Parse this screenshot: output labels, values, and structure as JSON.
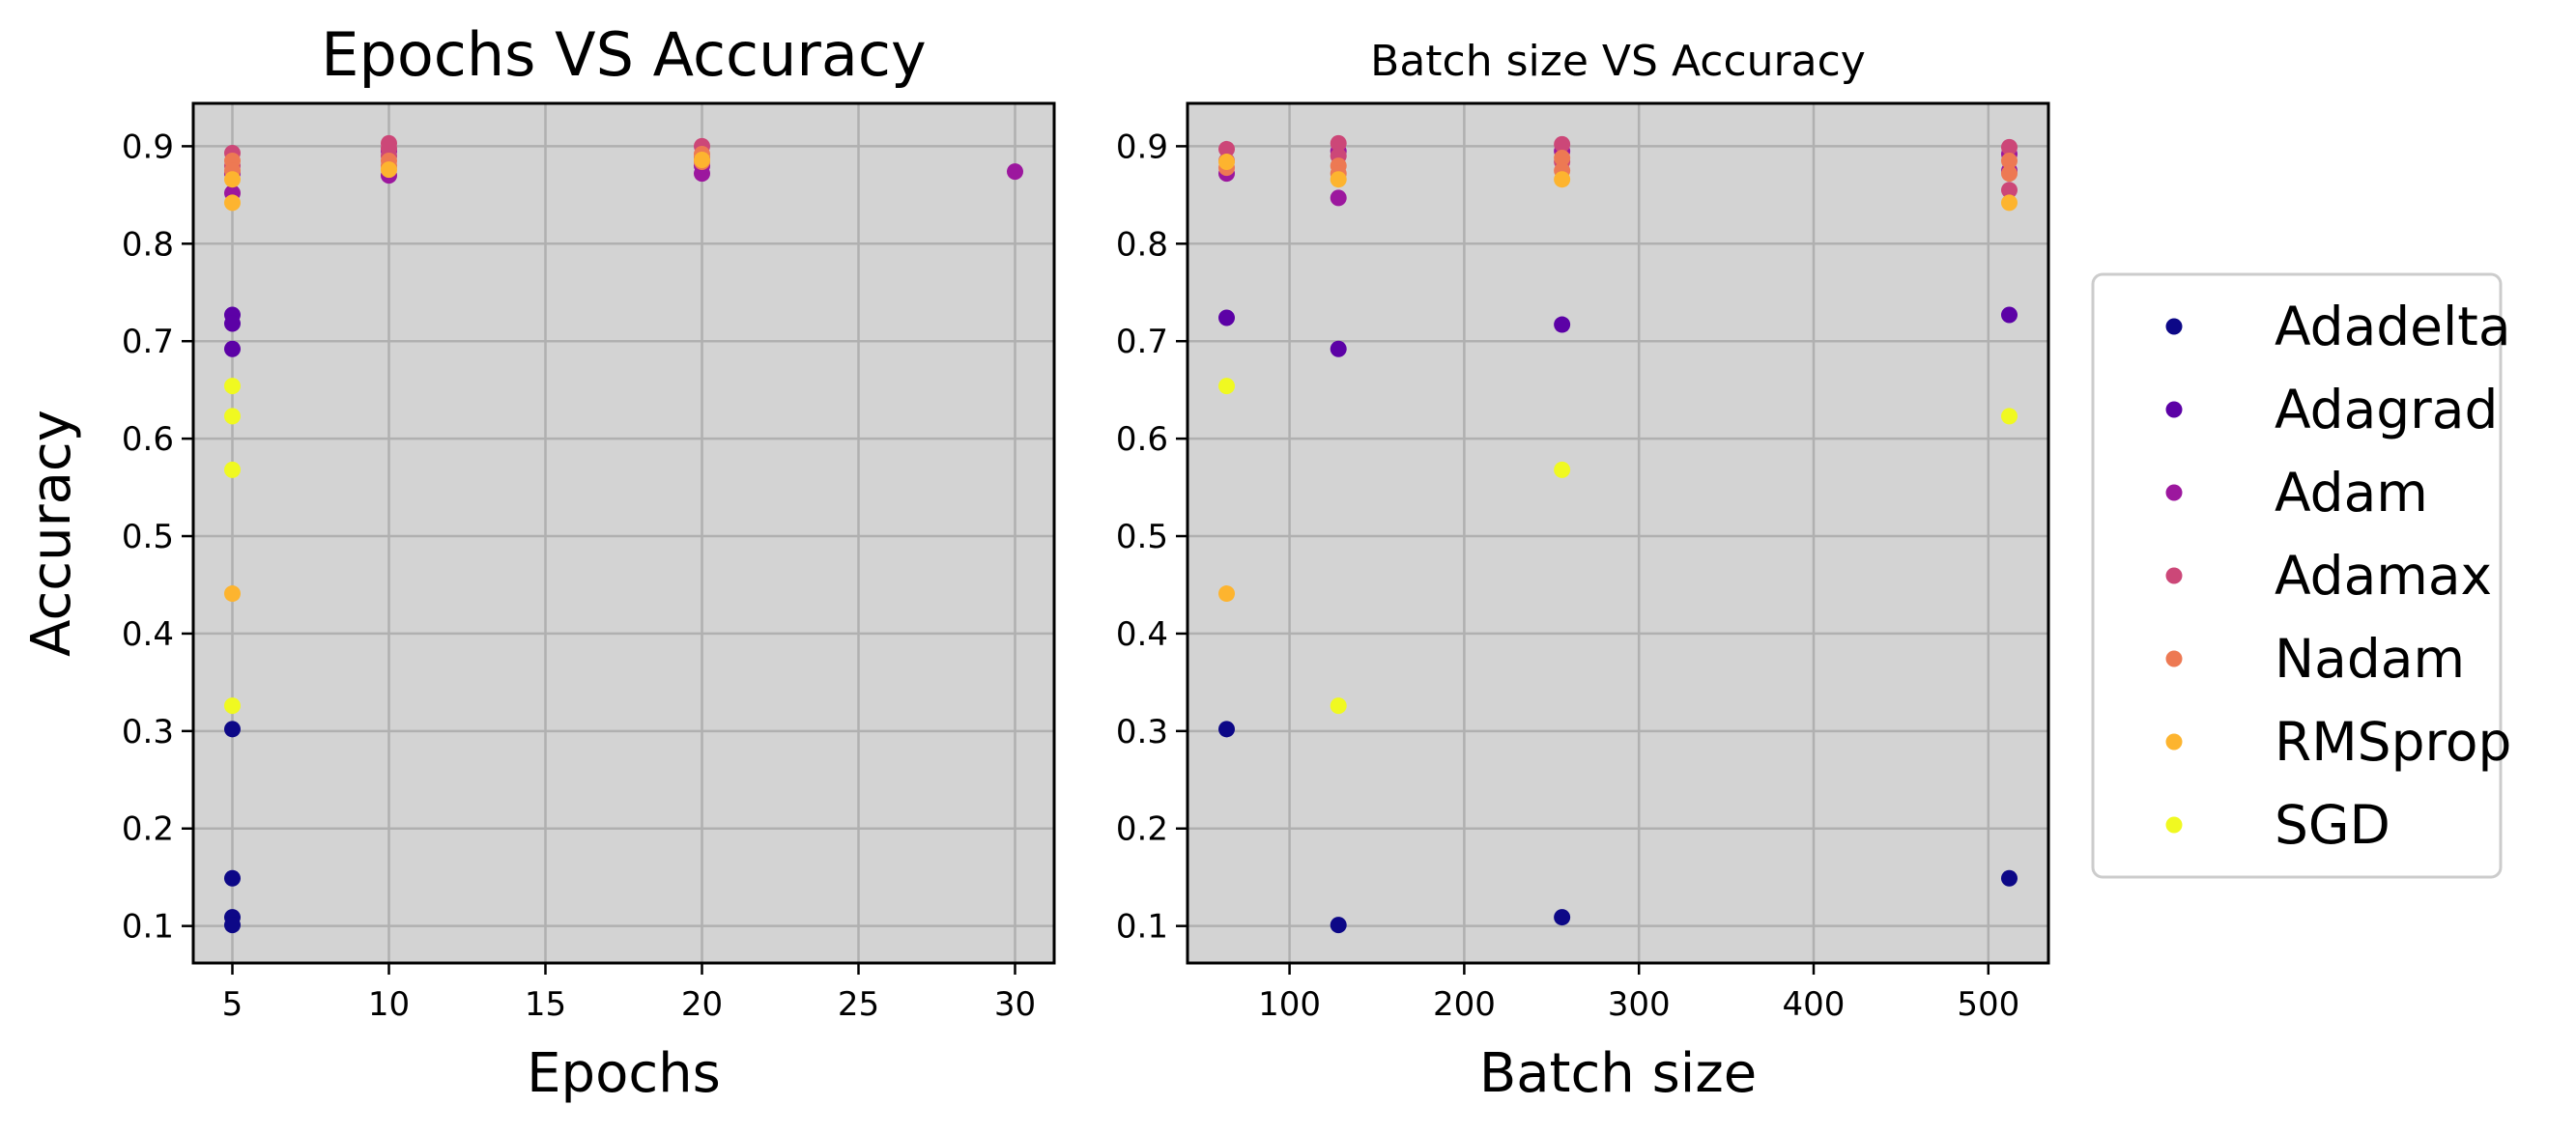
{
  "legend": {
    "items": [
      {
        "label": "Adadelta",
        "color": "#0d0887"
      },
      {
        "label": "Adagrad",
        "color": "#5c01a6"
      },
      {
        "label": "Adam",
        "color": "#9c179e"
      },
      {
        "label": "Adamax",
        "color": "#cc4778"
      },
      {
        "label": "Nadam",
        "color": "#ed7953"
      },
      {
        "label": "RMSprop",
        "color": "#fdb42f"
      },
      {
        "label": "SGD",
        "color": "#f0f921"
      }
    ]
  },
  "chart_data": [
    {
      "type": "scatter",
      "title": "Epochs VS Accuracy",
      "xlabel": "Epochs",
      "ylabel": "Accuracy",
      "xlim": [
        3.75,
        31.25
      ],
      "ylim": [
        0.062,
        0.944
      ],
      "xticks": [
        5,
        10,
        15,
        20,
        25,
        30
      ],
      "yticks": [
        0.1,
        0.2,
        0.3,
        0.4,
        0.5,
        0.6,
        0.7,
        0.8,
        0.9
      ],
      "grid": true,
      "background": "#d3d3d3",
      "series": [
        {
          "name": "Adadelta",
          "color": "#0d0887",
          "points": [
            [
              5,
              0.302
            ],
            [
              5,
              0.149
            ],
            [
              5,
              0.109
            ],
            [
              5,
              0.101
            ]
          ]
        },
        {
          "name": "Adagrad",
          "color": "#5c01a6",
          "points": [
            [
              5,
              0.727
            ],
            [
              5,
              0.718
            ],
            [
              5,
              0.692
            ]
          ]
        },
        {
          "name": "Adam",
          "color": "#9c179e",
          "points": [
            [
              5,
              0.852
            ],
            [
              5,
              0.872
            ],
            [
              10,
              0.87
            ],
            [
              10,
              0.895
            ],
            [
              20,
              0.872
            ],
            [
              20,
              0.88
            ],
            [
              30,
              0.874
            ]
          ]
        },
        {
          "name": "Adamax",
          "color": "#cc4778",
          "points": [
            [
              5,
              0.893
            ],
            [
              5,
              0.88
            ],
            [
              10,
              0.903
            ],
            [
              10,
              0.898
            ],
            [
              10,
              0.89
            ],
            [
              20,
              0.9
            ],
            [
              20,
              0.888
            ]
          ]
        },
        {
          "name": "Nadam",
          "color": "#ed7953",
          "points": [
            [
              5,
              0.885
            ],
            [
              5,
              0.875
            ],
            [
              10,
              0.885
            ],
            [
              10,
              0.88
            ],
            [
              20,
              0.892
            ],
            [
              20,
              0.884
            ]
          ]
        },
        {
          "name": "RMSprop",
          "color": "#fdb42f",
          "points": [
            [
              5,
              0.866
            ],
            [
              5,
              0.842
            ],
            [
              5,
              0.441
            ],
            [
              10,
              0.876
            ],
            [
              20,
              0.886
            ]
          ]
        },
        {
          "name": "SGD",
          "color": "#f0f921",
          "points": [
            [
              5,
              0.654
            ],
            [
              5,
              0.623
            ],
            [
              5,
              0.568
            ],
            [
              5,
              0.326
            ]
          ]
        }
      ]
    },
    {
      "type": "scatter",
      "title": "Batch size VS Accuracy",
      "xlabel": "Batch size",
      "ylabel": "",
      "xlim": [
        41.6,
        534.4
      ],
      "ylim": [
        0.062,
        0.944
      ],
      "xticks": [
        100,
        200,
        300,
        400,
        500
      ],
      "yticks": [
        0.1,
        0.2,
        0.3,
        0.4,
        0.5,
        0.6,
        0.7,
        0.8,
        0.9
      ],
      "grid": true,
      "background": "#d3d3d3",
      "series": [
        {
          "name": "Adadelta",
          "color": "#0d0887",
          "points": [
            [
              64,
              0.302
            ],
            [
              128,
              0.101
            ],
            [
              256,
              0.109
            ],
            [
              512,
              0.149
            ]
          ]
        },
        {
          "name": "Adagrad",
          "color": "#5c01a6",
          "points": [
            [
              64,
              0.724
            ],
            [
              128,
              0.692
            ],
            [
              256,
              0.717
            ],
            [
              512,
              0.727
            ]
          ]
        },
        {
          "name": "Adam",
          "color": "#9c179e",
          "points": [
            [
              64,
              0.872
            ],
            [
              128,
              0.847
            ],
            [
              128,
              0.895
            ],
            [
              256,
              0.895
            ],
            [
              512,
              0.892
            ],
            [
              512,
              0.875
            ]
          ]
        },
        {
          "name": "Adamax",
          "color": "#cc4778",
          "points": [
            [
              64,
              0.897
            ],
            [
              64,
              0.885
            ],
            [
              128,
              0.903
            ],
            [
              128,
              0.89
            ],
            [
              256,
              0.902
            ],
            [
              256,
              0.884
            ],
            [
              512,
              0.899
            ],
            [
              512,
              0.855
            ]
          ]
        },
        {
          "name": "Nadam",
          "color": "#ed7953",
          "points": [
            [
              64,
              0.878
            ],
            [
              128,
              0.88
            ],
            [
              128,
              0.872
            ],
            [
              256,
              0.888
            ],
            [
              256,
              0.875
            ],
            [
              512,
              0.885
            ],
            [
              512,
              0.872
            ]
          ]
        },
        {
          "name": "RMSprop",
          "color": "#fdb42f",
          "points": [
            [
              64,
              0.441
            ],
            [
              64,
              0.884
            ],
            [
              128,
              0.866
            ],
            [
              256,
              0.866
            ],
            [
              512,
              0.842
            ]
          ]
        },
        {
          "name": "SGD",
          "color": "#f0f921",
          "points": [
            [
              64,
              0.654
            ],
            [
              128,
              0.326
            ],
            [
              256,
              0.568
            ],
            [
              512,
              0.623
            ]
          ]
        }
      ]
    }
  ]
}
